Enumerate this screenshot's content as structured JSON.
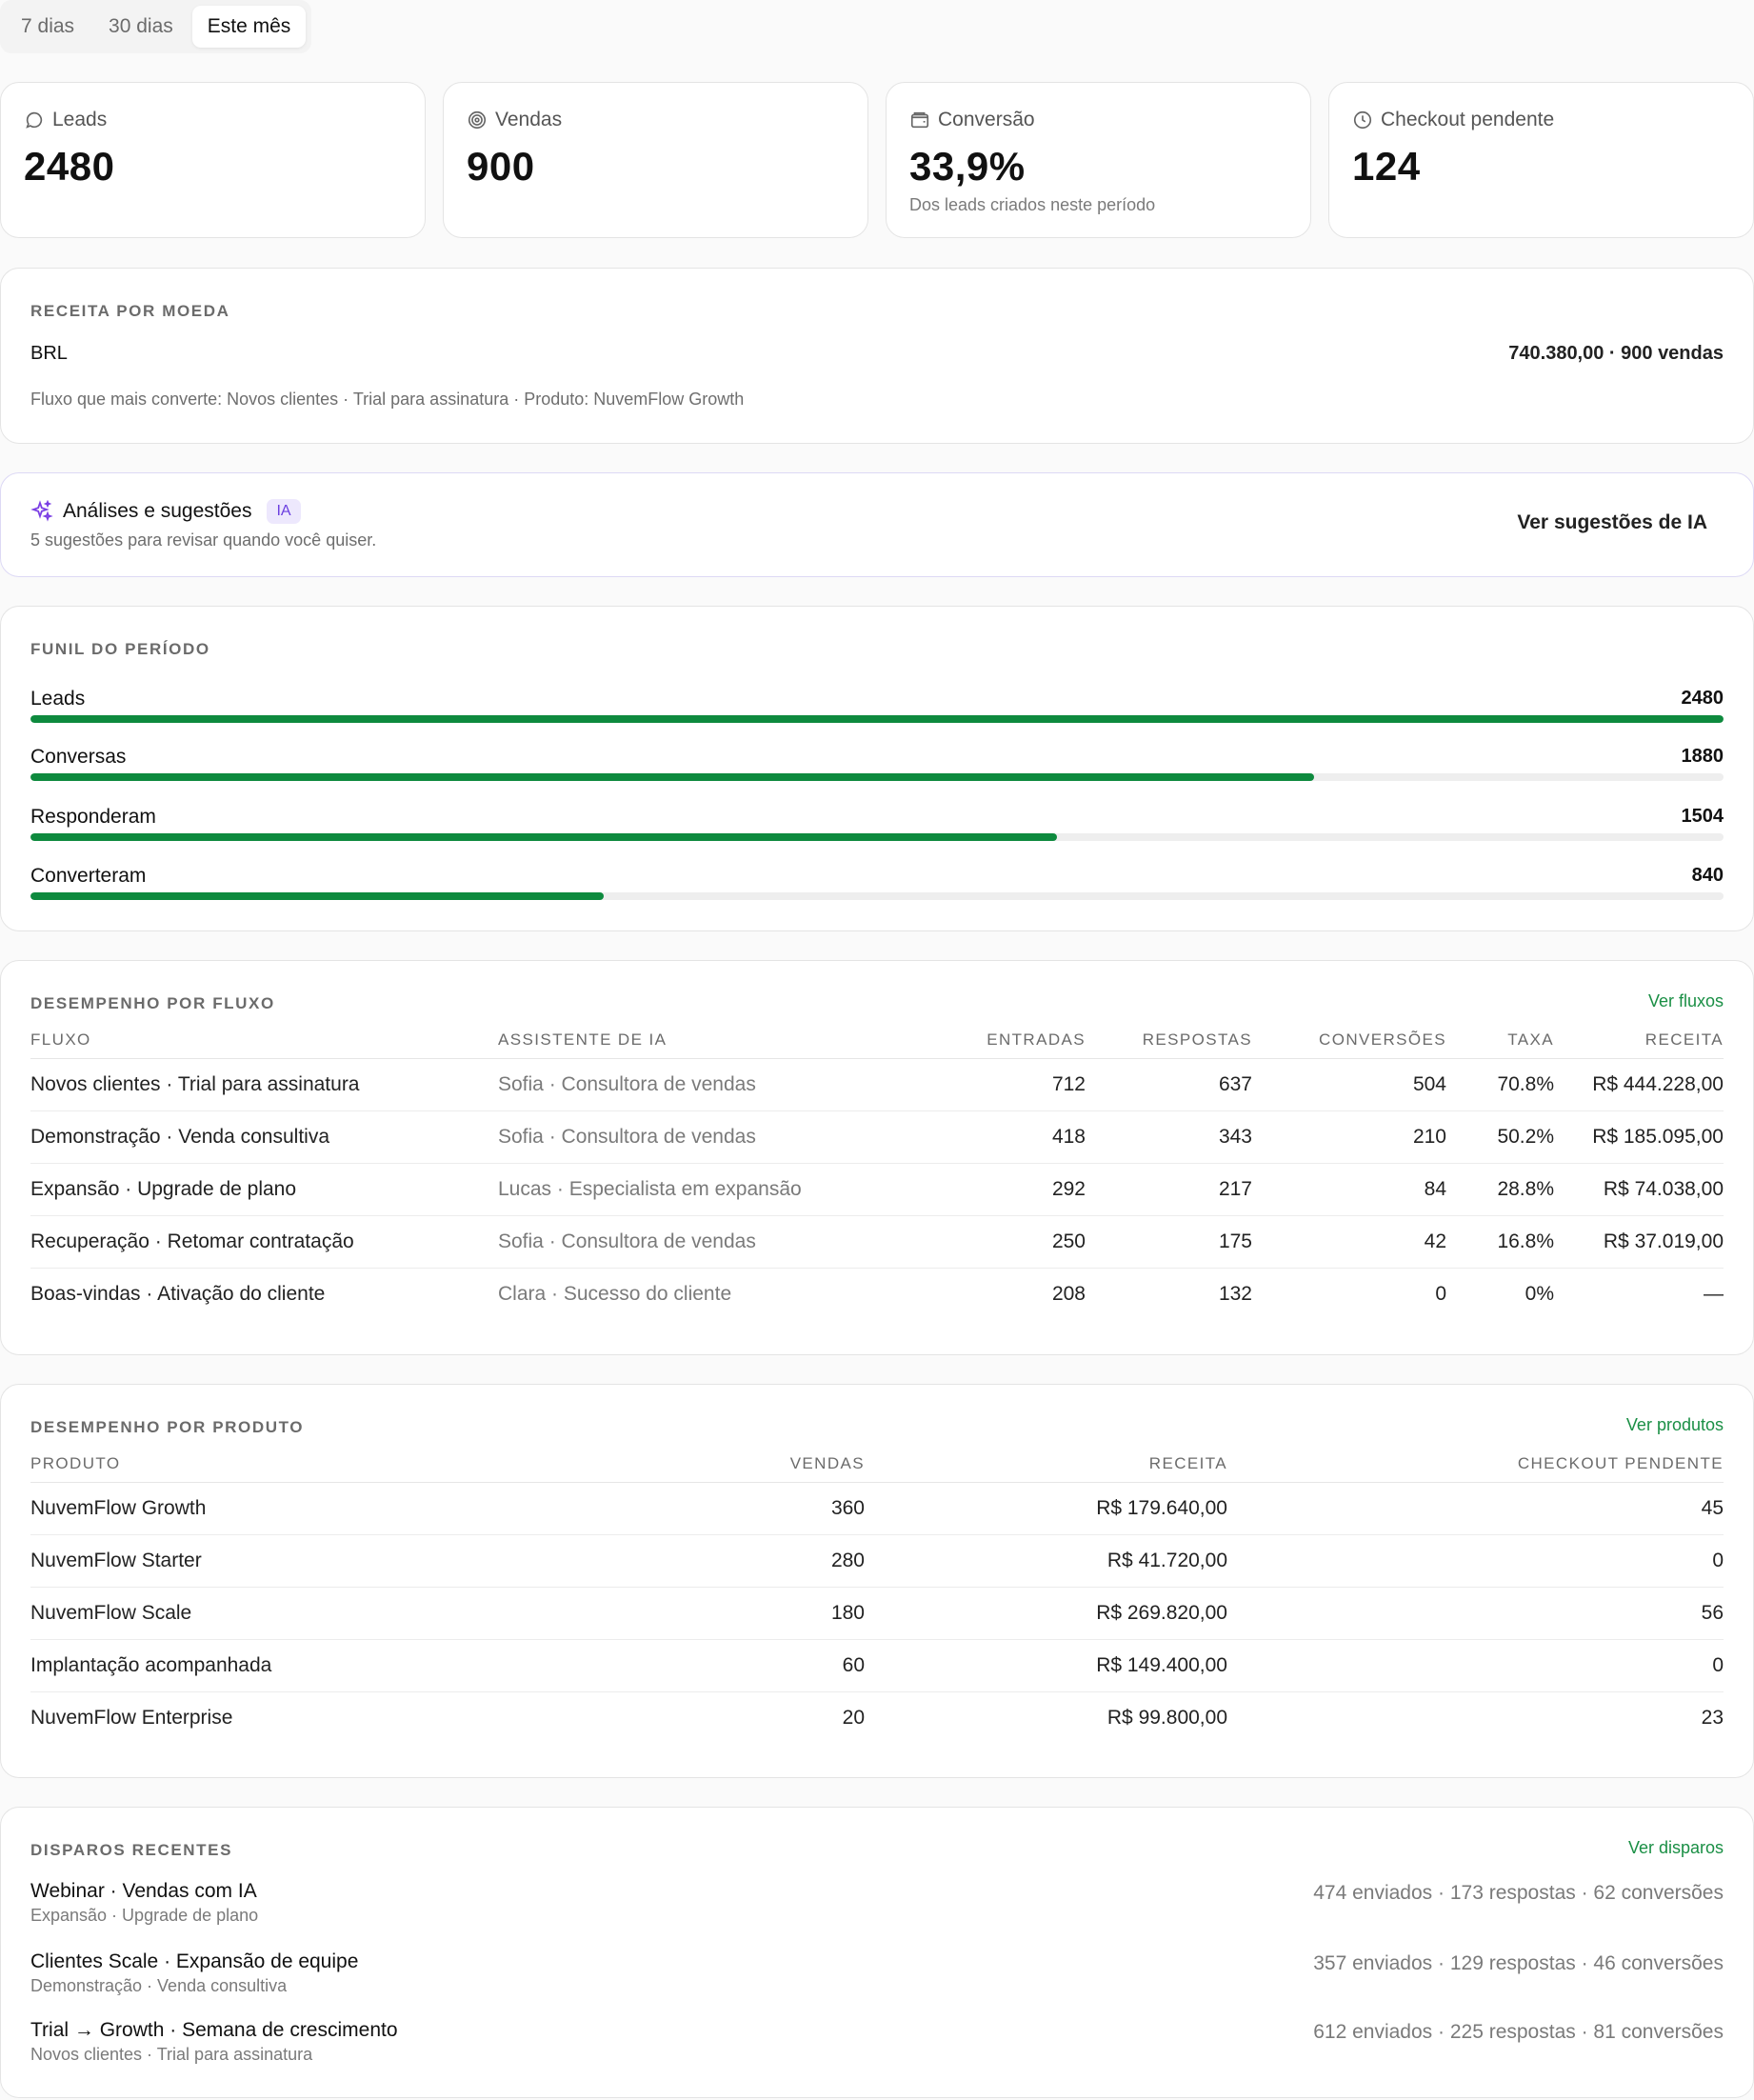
{
  "range_tabs": [
    "7 dias",
    "30 dias",
    "Este mês"
  ],
  "stats": [
    {
      "icon": "chat-bubble-icon",
      "label": "Leads",
      "value": "2480",
      "sub": ""
    },
    {
      "icon": "target-icon",
      "label": "Vendas",
      "value": "900",
      "sub": ""
    },
    {
      "icon": "wallet-icon",
      "label": "Conversão",
      "value": "33,9%",
      "sub": "Dos leads criados neste período"
    },
    {
      "icon": "clock-icon",
      "label": "Checkout pendente",
      "value": "124",
      "sub": ""
    }
  ],
  "revenue": {
    "title": "RECEITA POR MOEDA",
    "currency": "BRL",
    "value": "740.380,00 · 900 vendas",
    "note": "Fluxo que mais converte: Novos clientes · Trial para assinatura · Produto: NuvemFlow Growth"
  },
  "ai": {
    "title": "Análises e sugestões",
    "badge": "IA",
    "subtitle": "5 sugestões para revisar quando você quiser.",
    "button": "Ver sugestões de IA",
    "accent": "#6b3fe0"
  },
  "funnel": {
    "title": "FUNIL DO PERÍODO",
    "max": 2480,
    "steps": [
      {
        "label": "Leads",
        "value": 2480
      },
      {
        "label": "Conversas",
        "value": 1880
      },
      {
        "label": "Responderam",
        "value": 1504
      },
      {
        "label": "Converteram",
        "value": 840
      }
    ],
    "bar_color": "#0e8a3e"
  },
  "flows": {
    "title": "DESEMPENHO POR FLUXO",
    "link": "Ver fluxos",
    "headers": [
      "FLUXO",
      "ASSISTENTE DE IA",
      "ENTRADAS",
      "RESPOSTAS",
      "CONVERSÕES",
      "TAXA",
      "RECEITA"
    ],
    "rows": [
      [
        "Novos clientes · Trial para assinatura",
        "Sofia · Consultora de vendas",
        "712",
        "637",
        "504",
        "70.8%",
        "R$ 444.228,00"
      ],
      [
        "Demonstração · Venda consultiva",
        "Sofia · Consultora de vendas",
        "418",
        "343",
        "210",
        "50.2%",
        "R$ 185.095,00"
      ],
      [
        "Expansão · Upgrade de plano",
        "Lucas · Especialista em expansão",
        "292",
        "217",
        "84",
        "28.8%",
        "R$ 74.038,00"
      ],
      [
        "Recuperação · Retomar contratação",
        "Sofia · Consultora de vendas",
        "250",
        "175",
        "42",
        "16.8%",
        "R$ 37.019,00"
      ],
      [
        "Boas-vindas · Ativação do cliente",
        "Clara · Sucesso do cliente",
        "208",
        "132",
        "0",
        "0%",
        "—"
      ]
    ]
  },
  "products": {
    "title": "DESEMPENHO POR PRODUTO",
    "link": "Ver produtos",
    "headers": [
      "PRODUTO",
      "VENDAS",
      "RECEITA",
      "CHECKOUT PENDENTE"
    ],
    "rows": [
      [
        "NuvemFlow Growth",
        "360",
        "R$ 179.640,00",
        "45"
      ],
      [
        "NuvemFlow Starter",
        "280",
        "R$ 41.720,00",
        "0"
      ],
      [
        "NuvemFlow Scale",
        "180",
        "R$ 269.820,00",
        "56"
      ],
      [
        "Implantação acompanhada",
        "60",
        "R$ 149.400,00",
        "0"
      ],
      [
        "NuvemFlow Enterprise",
        "20",
        "R$ 99.800,00",
        "23"
      ]
    ]
  },
  "dispatches": {
    "title": "DISPAROS RECENTES",
    "link": "Ver disparos",
    "items": [
      {
        "name": "Webinar · Vendas com IA",
        "sub": "Expansão · Upgrade de plano",
        "stats": "474 enviados · 173 respostas · 62 conversões"
      },
      {
        "name": "Clientes Scale · Expansão de equipe",
        "sub": "Demonstração · Venda consultiva",
        "stats": "357 enviados · 129 respostas · 46 conversões"
      },
      {
        "name": "Trial → Growth · Semana de crescimento",
        "sub": "Novos clientes · Trial para assinatura",
        "stats": "612 enviados · 225 respostas · 81 conversões"
      }
    ]
  }
}
